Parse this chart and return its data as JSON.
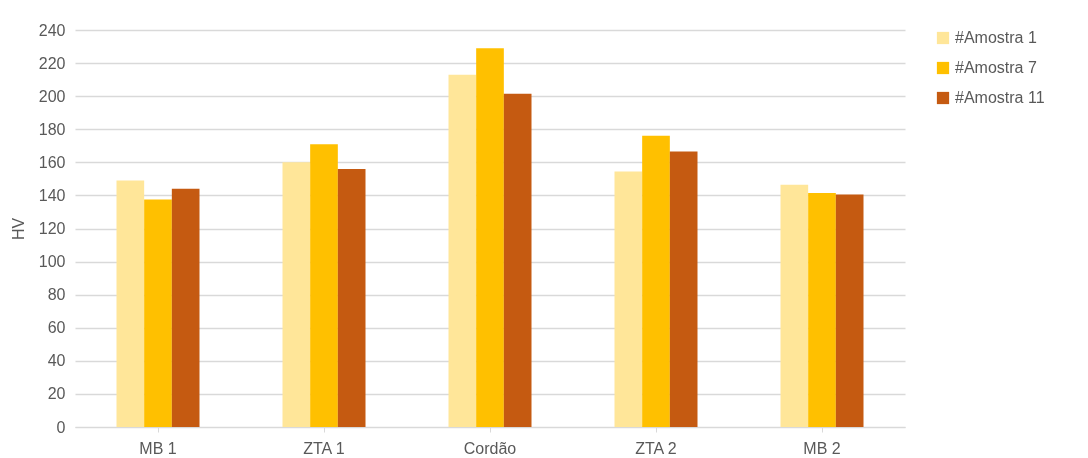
{
  "chart_data": {
    "type": "bar",
    "ylabel": "HV",
    "categories": [
      "MB 1",
      "ZTA 1",
      "Cordão",
      "ZTA 2",
      "MB 2"
    ],
    "series": [
      {
        "name": "#Amostra 1",
        "color": "#ffe699",
        "values": [
          149,
          160,
          213,
          154.5,
          146.5
        ]
      },
      {
        "name": "#Amostra 7",
        "color": "#ffc000",
        "values": [
          137.5,
          171,
          229,
          176,
          141.5
        ]
      },
      {
        "name": "#Amostra 11",
        "color": "#c55a11",
        "values": [
          144,
          156,
          201.5,
          166.5,
          140.5
        ]
      }
    ],
    "ylim": [
      0,
      240
    ],
    "yticks": [
      0,
      20,
      40,
      60,
      80,
      100,
      120,
      140,
      160,
      180,
      200,
      220,
      240
    ],
    "grid": "y",
    "legend": "right"
  }
}
